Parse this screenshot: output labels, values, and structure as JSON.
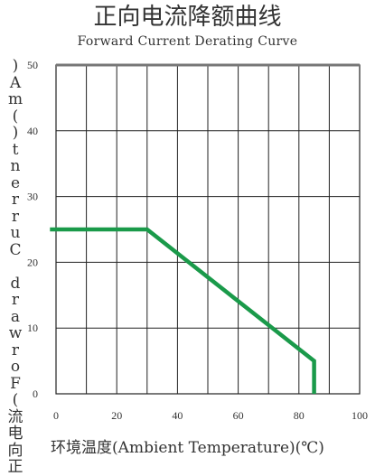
{
  "chart_data": {
    "type": "line",
    "title": "正向电流降额曲线",
    "subtitle": "Forward Current Derating Curve",
    "xlabel": "环境温度(Ambient Temperature)(℃)",
    "ylabel": "正向电流(Forward Current)(mA)",
    "xlim": [
      0,
      100
    ],
    "ylim": [
      0,
      50
    ],
    "x_ticks": [
      0,
      20,
      40,
      60,
      80,
      100
    ],
    "y_ticks": [
      0,
      10,
      20,
      30,
      40,
      50
    ],
    "grid": true,
    "series": [
      {
        "x": [
          -2,
          30,
          85,
          85
        ],
        "y": [
          25,
          25,
          5,
          0
        ],
        "color": "#1a9a4a"
      }
    ]
  }
}
